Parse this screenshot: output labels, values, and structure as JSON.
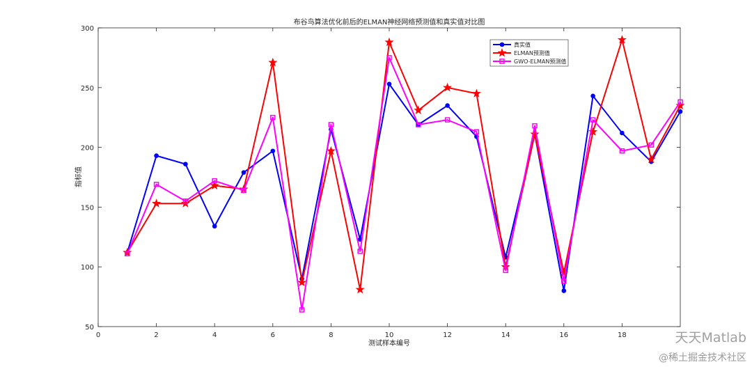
{
  "chart_data": {
    "type": "line",
    "title": "布谷鸟算法优化前后的ELMAN神经网络预测值和真实值对比图",
    "xlabel": "测试样本编号",
    "ylabel": "指标值",
    "xlim": [
      0,
      20
    ],
    "ylim": [
      50,
      300
    ],
    "xticks": [
      "0",
      "2",
      "4",
      "6",
      "8",
      "10",
      "12",
      "14",
      "16",
      "18"
    ],
    "yticks": [
      "50",
      "100",
      "150",
      "200",
      "250",
      "300"
    ],
    "grid": false,
    "legend_position": "top-right",
    "x": [
      1,
      2,
      3,
      4,
      5,
      6,
      7,
      8,
      9,
      10,
      11,
      12,
      13,
      14,
      15,
      16,
      17,
      18,
      19,
      20
    ],
    "series": [
      {
        "name": "真实值",
        "color": "#0000ff",
        "marker": "circle",
        "values": [
          112,
          193,
          186,
          134,
          179,
          197,
          90,
          215,
          123,
          253,
          219,
          235,
          209,
          108,
          211,
          80,
          243,
          212,
          188,
          230
        ]
      },
      {
        "name": "ELMAN预测值",
        "color": "#ff0000",
        "marker": "star",
        "values": [
          112,
          153,
          153,
          168,
          165,
          271,
          87,
          197,
          81,
          288,
          231,
          250,
          245,
          100,
          211,
          95,
          213,
          290,
          190,
          235
        ]
      },
      {
        "name": "GWO-ELMAN预测值",
        "color": "#ff00ff",
        "marker": "square",
        "values": [
          111,
          169,
          155,
          172,
          164,
          225,
          64,
          219,
          113,
          275,
          219,
          223,
          213,
          97,
          218,
          88,
          223,
          197,
          202,
          238
        ]
      }
    ]
  },
  "watermark": {
    "brand": "天天Matlab",
    "community": "@稀土掘金技术社区"
  }
}
